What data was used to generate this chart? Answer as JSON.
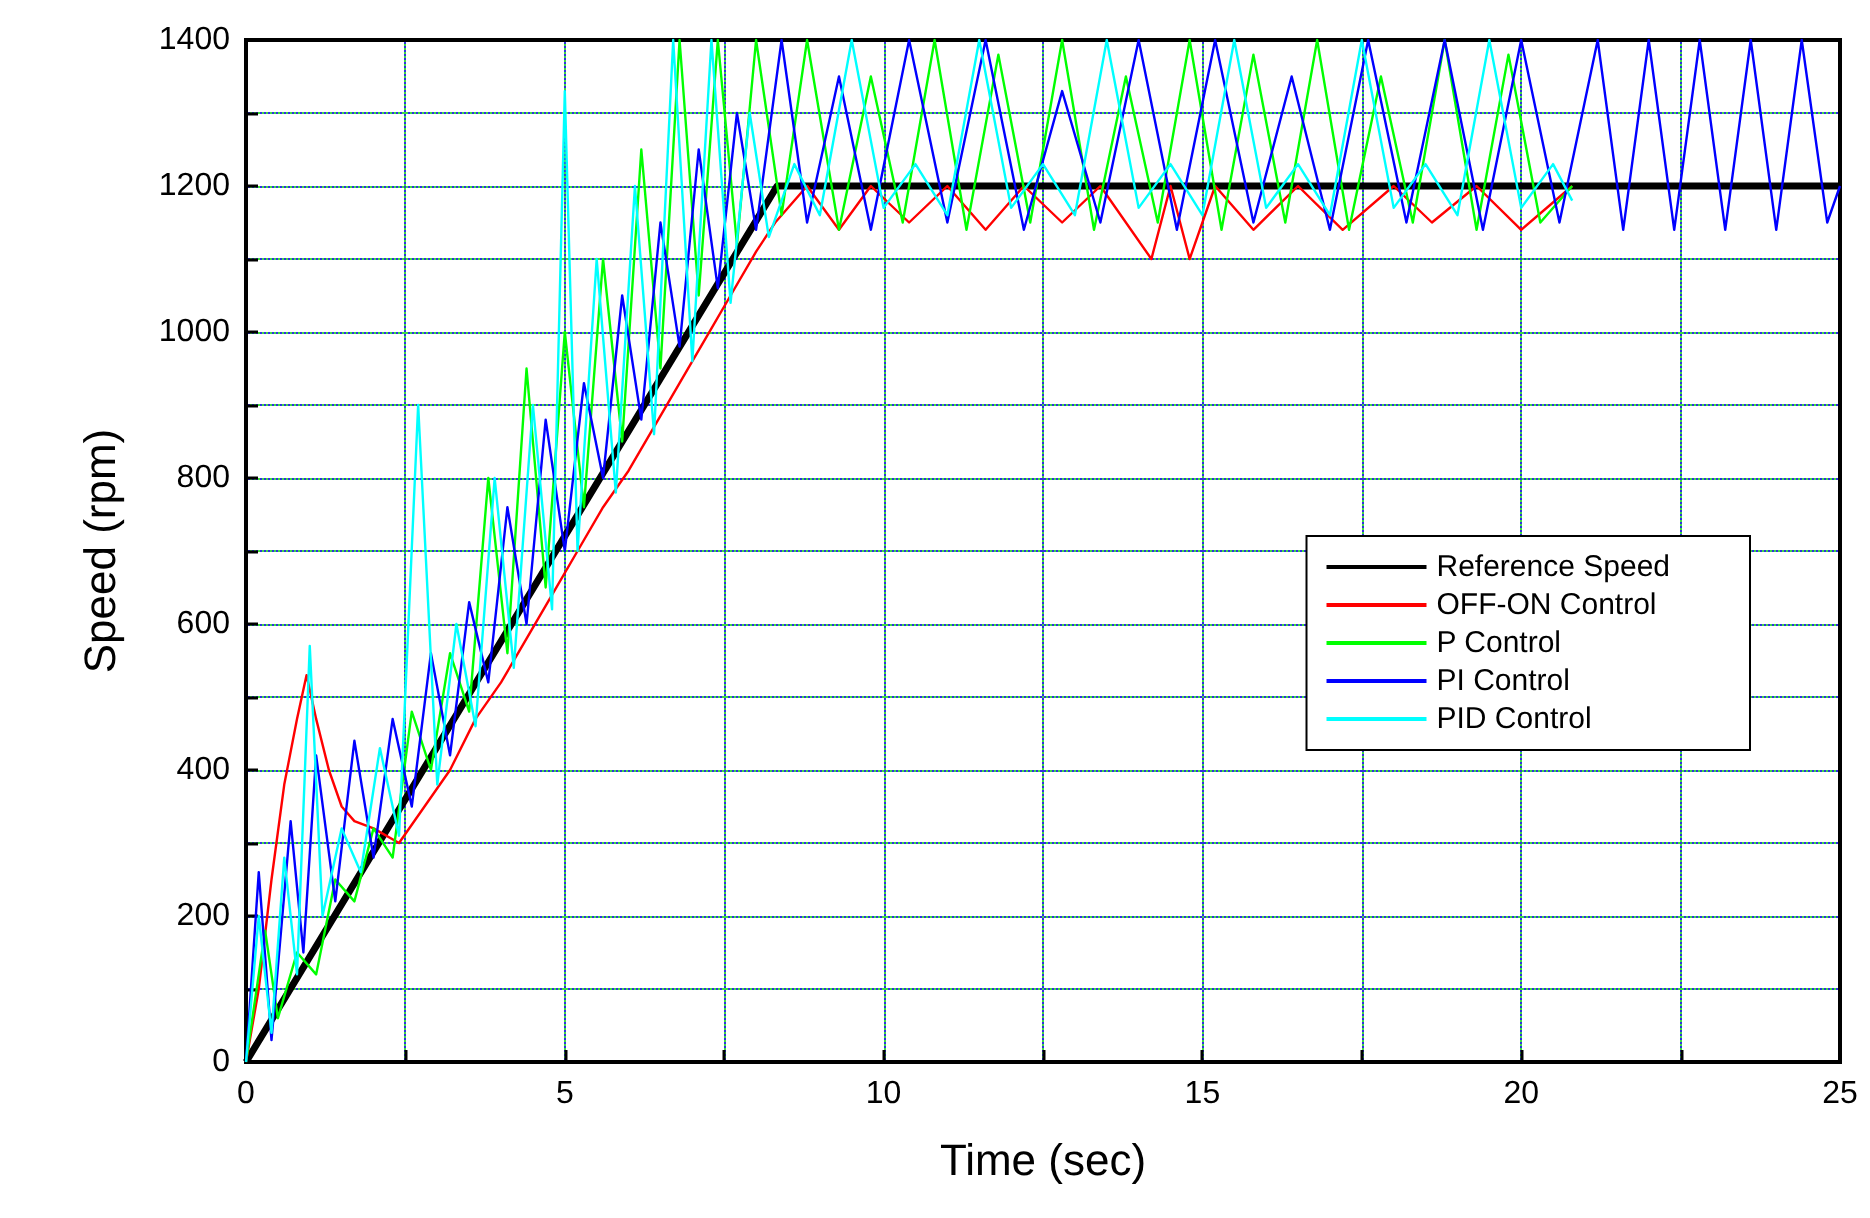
{
  "chart_data": {
    "type": "line",
    "xlabel": "Time (sec)",
    "ylabel": "Speed (rpm)",
    "xlim": [
      0,
      25
    ],
    "xticks": [
      0,
      {
        "value": 2.5,
        "label": null
      },
      5,
      {
        "value": 7.5,
        "label": null
      },
      10,
      {
        "value": 12.5,
        "label": null
      },
      15,
      {
        "value": 17.5,
        "label": null
      },
      20,
      {
        "value": 22.5,
        "label": null
      },
      25
    ],
    "ylim": [
      0,
      1400
    ],
    "yticks": [
      0,
      {
        "value": 100,
        "label": null
      },
      200,
      {
        "value": 300,
        "label": null
      },
      400,
      {
        "value": 500,
        "label": null
      },
      600,
      {
        "value": 700,
        "label": null
      },
      800,
      {
        "value": 900,
        "label": null
      },
      1000,
      {
        "value": 1100,
        "label": null
      },
      1200,
      {
        "value": 1300,
        "label": null
      },
      1400
    ],
    "grid": true,
    "legend": "right",
    "marker": "none",
    "line_style": "solid",
    "series": [
      {
        "name": "Reference Speed",
        "color": "#000000",
        "x": [
          0,
          8.33,
          25
        ],
        "values": [
          0,
          1200,
          1200
        ]
      },
      {
        "name": "OFF-ON Control",
        "color": "#ff0000",
        "x": [
          0,
          0.2,
          0.4,
          0.6,
          0.8,
          0.95,
          1.1,
          1.3,
          1.5,
          1.7,
          2.0,
          2.4,
          2.8,
          3.2,
          3.6,
          4.0,
          4.4,
          4.8,
          5.2,
          5.6,
          6.0,
          6.4,
          6.8,
          7.2,
          7.6,
          8.0,
          8.3,
          8.8,
          9.3,
          9.8,
          10.4,
          11,
          11.6,
          12.2,
          12.8,
          13.4,
          14.2,
          14.5,
          14.8,
          15.2,
          15.8,
          16.5,
          17.2,
          18,
          18.6,
          19.3,
          20,
          20.8
        ],
        "values": [
          0,
          100,
          250,
          380,
          470,
          530,
          470,
          400,
          350,
          330,
          320,
          300,
          350,
          400,
          470,
          520,
          580,
          640,
          700,
          760,
          810,
          870,
          930,
          990,
          1050,
          1110,
          1150,
          1200,
          1140,
          1200,
          1150,
          1200,
          1140,
          1200,
          1150,
          1200,
          1100,
          1200,
          1100,
          1200,
          1140,
          1200,
          1140,
          1200,
          1150,
          1200,
          1140,
          1200
        ]
      },
      {
        "name": "P Control",
        "color": "#00ff00",
        "x": [
          0,
          0.3,
          0.5,
          0.8,
          1.1,
          1.4,
          1.7,
          2.0,
          2.3,
          2.6,
          2.9,
          3.2,
          3.5,
          3.8,
          4.1,
          4.4,
          4.7,
          5.0,
          5.3,
          5.6,
          5.9,
          6.2,
          6.5,
          6.8,
          7.1,
          7.4,
          7.7,
          8.0,
          8.4,
          8.8,
          9.3,
          9.8,
          10.3,
          10.8,
          11.3,
          11.8,
          12.3,
          12.8,
          13.3,
          13.8,
          14.3,
          14.8,
          15.3,
          15.8,
          16.3,
          16.8,
          17.3,
          17.8,
          18.3,
          18.8,
          19.3,
          19.8,
          20.3,
          20.8
        ],
        "values": [
          0,
          180,
          60,
          150,
          120,
          250,
          220,
          320,
          280,
          480,
          400,
          560,
          480,
          800,
          560,
          950,
          650,
          1000,
          760,
          1100,
          850,
          1250,
          950,
          1400,
          1050,
          1400,
          1120,
          1400,
          1160,
          1400,
          1140,
          1350,
          1150,
          1400,
          1140,
          1380,
          1150,
          1400,
          1140,
          1350,
          1150,
          1400,
          1140,
          1380,
          1150,
          1400,
          1140,
          1350,
          1150,
          1400,
          1140,
          1380,
          1150,
          1200
        ]
      },
      {
        "name": "PI Control",
        "color": "#0000ff",
        "x": [
          0,
          0.2,
          0.4,
          0.7,
          0.9,
          1.1,
          1.4,
          1.7,
          2.0,
          2.3,
          2.6,
          2.9,
          3.2,
          3.5,
          3.8,
          4.1,
          4.4,
          4.7,
          5.0,
          5.3,
          5.6,
          5.9,
          6.2,
          6.5,
          6.8,
          7.1,
          7.4,
          7.7,
          8.0,
          8.4,
          8.8,
          9.3,
          9.8,
          10.4,
          11,
          11.6,
          12.2,
          12.8,
          13.4,
          14,
          14.6,
          15.2,
          15.8,
          16.4,
          17,
          17.6,
          18.2,
          18.8,
          19.4,
          20,
          20.6,
          21.2,
          21.6,
          22,
          22.4,
          22.8,
          23.2,
          23.6,
          24,
          24.4,
          24.8,
          25
        ],
        "values": [
          0,
          260,
          30,
          330,
          150,
          420,
          220,
          440,
          280,
          470,
          350,
          560,
          420,
          630,
          520,
          760,
          600,
          880,
          700,
          930,
          800,
          1050,
          880,
          1150,
          980,
          1250,
          1060,
          1300,
          1140,
          1400,
          1150,
          1350,
          1140,
          1400,
          1150,
          1400,
          1140,
          1330,
          1150,
          1400,
          1140,
          1400,
          1150,
          1350,
          1140,
          1400,
          1150,
          1400,
          1140,
          1400,
          1150,
          1400,
          1140,
          1400,
          1140,
          1400,
          1140,
          1400,
          1140,
          1400,
          1150,
          1200
        ]
      },
      {
        "name": "PID Control",
        "color": "#00ffff",
        "x": [
          0,
          0.2,
          0.4,
          0.6,
          0.8,
          1.0,
          1.2,
          1.5,
          1.8,
          2.1,
          2.4,
          2.7,
          3.0,
          3.3,
          3.6,
          3.9,
          4.2,
          4.5,
          4.8,
          5.0,
          5.2,
          5.5,
          5.8,
          6.1,
          6.4,
          6.7,
          7.0,
          7.3,
          7.6,
          7.9,
          8.2,
          8.6,
          9.0,
          9.5,
          10,
          10.5,
          11,
          11.5,
          12,
          12.5,
          13,
          13.5,
          14,
          14.5,
          15,
          15.5,
          16,
          16.5,
          17,
          17.5,
          18,
          18.5,
          19,
          19.5,
          20,
          20.5,
          20.8
        ],
        "values": [
          0,
          200,
          40,
          280,
          120,
          570,
          200,
          320,
          260,
          430,
          310,
          900,
          380,
          600,
          460,
          800,
          540,
          900,
          620,
          1330,
          700,
          1100,
          780,
          1200,
          860,
          1400,
          960,
          1400,
          1040,
          1300,
          1130,
          1230,
          1160,
          1400,
          1170,
          1230,
          1160,
          1400,
          1170,
          1230,
          1160,
          1400,
          1170,
          1230,
          1160,
          1400,
          1170,
          1230,
          1160,
          1400,
          1170,
          1230,
          1160,
          1400,
          1170,
          1230,
          1180
        ]
      }
    ]
  }
}
